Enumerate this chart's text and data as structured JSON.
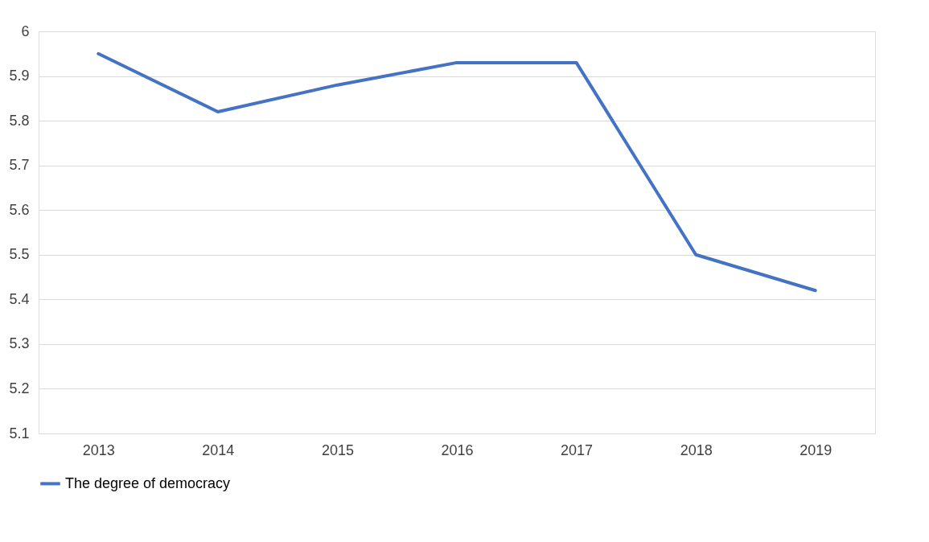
{
  "chart_data": {
    "type": "line",
    "categories": [
      "2013",
      "2014",
      "2015",
      "2016",
      "2017",
      "2018",
      "2019"
    ],
    "series": [
      {
        "name": "The degree of democracy",
        "color": "#4472c4",
        "values": [
          5.95,
          5.82,
          5.88,
          5.93,
          5.93,
          5.5,
          5.42
        ]
      }
    ],
    "ylim": [
      5.1,
      6
    ],
    "yticks": [
      5.1,
      5.2,
      5.3,
      5.4,
      5.5,
      5.6,
      5.7,
      5.8,
      5.9,
      6
    ],
    "grid": "y",
    "legend": "bottom",
    "marker": "none",
    "line_style": "solid"
  }
}
